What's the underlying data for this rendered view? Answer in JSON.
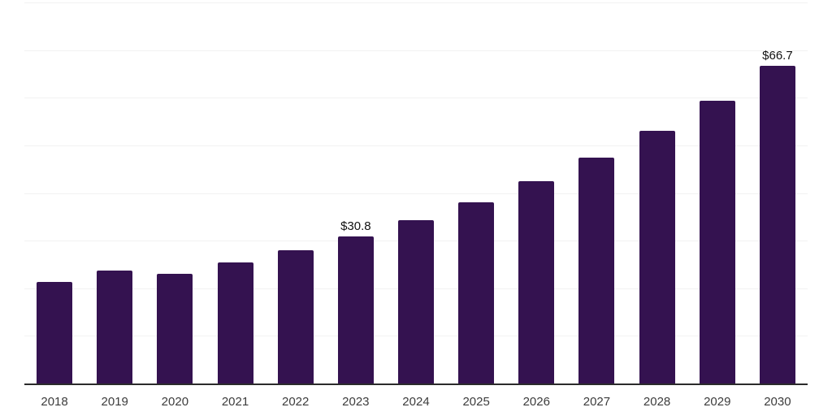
{
  "chart_data": {
    "type": "bar",
    "title": "",
    "xlabel": "",
    "ylabel": "",
    "categories": [
      "2018",
      "2019",
      "2020",
      "2021",
      "2022",
      "2023",
      "2024",
      "2025",
      "2026",
      "2027",
      "2028",
      "2029",
      "2030"
    ],
    "values": [
      21.4,
      23.7,
      23.1,
      25.5,
      28.0,
      30.8,
      34.3,
      38.0,
      42.4,
      47.4,
      53.0,
      59.4,
      66.7
    ],
    "labeled_points": [
      {
        "category": "2023",
        "label": "$30.8"
      },
      {
        "category": "2030",
        "label": "$66.7"
      }
    ],
    "ylim": [
      0,
      80
    ],
    "gridline_step": 10,
    "grid": true,
    "legend": false,
    "colors": {
      "bar": "#341250",
      "axis_line": "#2b2b2b",
      "gridline": "#f2f2f2",
      "tick_label": "#3c3c3c",
      "value_label": "#111111",
      "background": "#ffffff"
    }
  }
}
